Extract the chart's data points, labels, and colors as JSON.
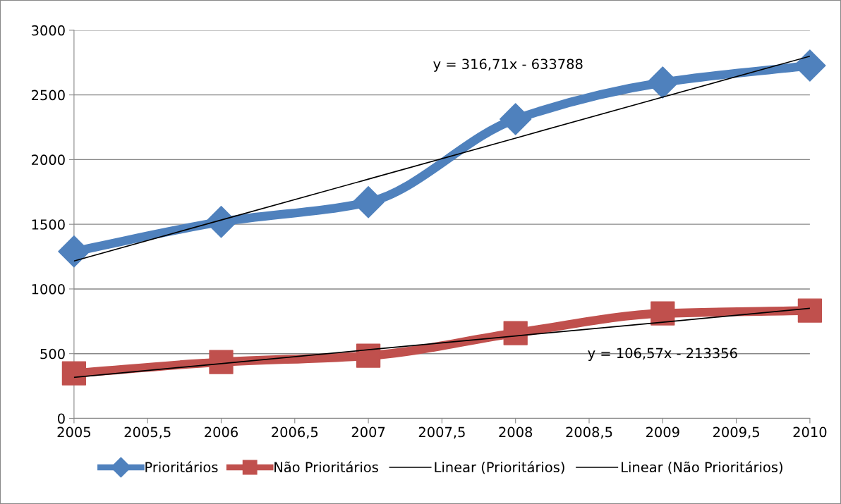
{
  "chart_data": {
    "type": "line",
    "x": [
      2005,
      2006,
      2007,
      2008,
      2009,
      2010
    ],
    "series": [
      {
        "name": "Prioritários",
        "color": "#4f81bd",
        "marker": "diamond",
        "values": [
          1290,
          1519,
          1671,
          2313,
          2596,
          2727
        ]
      },
      {
        "name": "Não Prioritários",
        "color": "#c0504d",
        "marker": "square",
        "values": [
          348,
          435,
          484,
          659,
          811,
          833
        ]
      },
      {
        "name": "Linear (Prioritários)",
        "color": "#000000",
        "marker": "none",
        "values": [
          1216,
          1533,
          1849,
          2166,
          2483,
          2799
        ]
      },
      {
        "name": "Linear (Não Prioritários)",
        "color": "#000000",
        "marker": "none",
        "values": [
          317,
          423,
          530,
          637,
          743,
          850
        ]
      }
    ],
    "xlim": [
      2005,
      2010
    ],
    "xticks": [
      2005,
      {
        "value": 2005.5,
        "label": "2005,5"
      },
      2006,
      {
        "value": 2006.5,
        "label": "2006,5"
      },
      2007,
      {
        "value": 2007.5,
        "label": "2007,5"
      },
      2008,
      {
        "value": 2008.5,
        "label": "2008,5"
      },
      2009,
      {
        "value": 2009.5,
        "label": "2009,5"
      },
      2010
    ],
    "ylim": [
      0,
      3000
    ],
    "yticks": [
      0,
      500,
      1000,
      1500,
      2000,
      2500,
      3000
    ],
    "grid": "y",
    "legend": "bottom",
    "annotations": [
      "y = 316,71x - 633788",
      "y = 106,57x - 213356"
    ]
  }
}
